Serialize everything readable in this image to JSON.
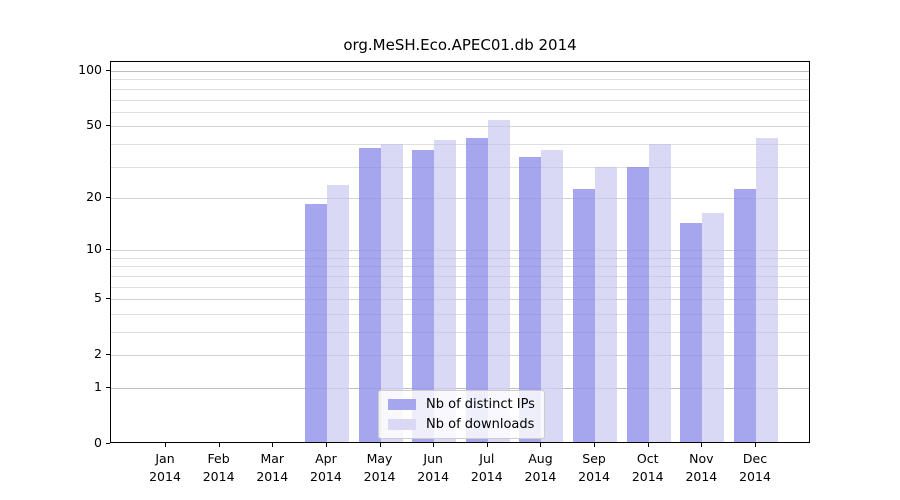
{
  "chart_data": {
    "type": "bar",
    "title": "org.MeSH.Eco.APEC01.db 2014",
    "categories": [
      "Jan 2014",
      "Feb 2014",
      "Mar 2014",
      "Apr 2014",
      "May 2014",
      "Jun 2014",
      "Jul 2014",
      "Aug 2014",
      "Sep 2014",
      "Oct 2014",
      "Nov 2014",
      "Dec 2014"
    ],
    "series": [
      {
        "name": "Nb of distinct IPs",
        "color": "#a6a6ef",
        "values": [
          0,
          0,
          0,
          18,
          37,
          36,
          42,
          33,
          22,
          29,
          14,
          22
        ]
      },
      {
        "name": "Nb of downloads",
        "color": "#d9d9f6",
        "values": [
          0,
          0,
          0,
          23,
          39,
          41,
          53,
          36,
          29,
          39,
          16,
          42
        ]
      }
    ],
    "xlabel": "",
    "ylabel": "",
    "yscale": "log1p",
    "ylim": [
      0,
      112
    ],
    "yticks": [
      0,
      1,
      2,
      5,
      10,
      20,
      50,
      100
    ],
    "yticks_strong": [
      1,
      100
    ],
    "yticks_minor": [
      3,
      4,
      6,
      7,
      8,
      9,
      30,
      40,
      60,
      70,
      80,
      90
    ],
    "grid": true,
    "legend_position": "lower-center",
    "background_color": "#ffffff",
    "axis_color": "#000000"
  }
}
